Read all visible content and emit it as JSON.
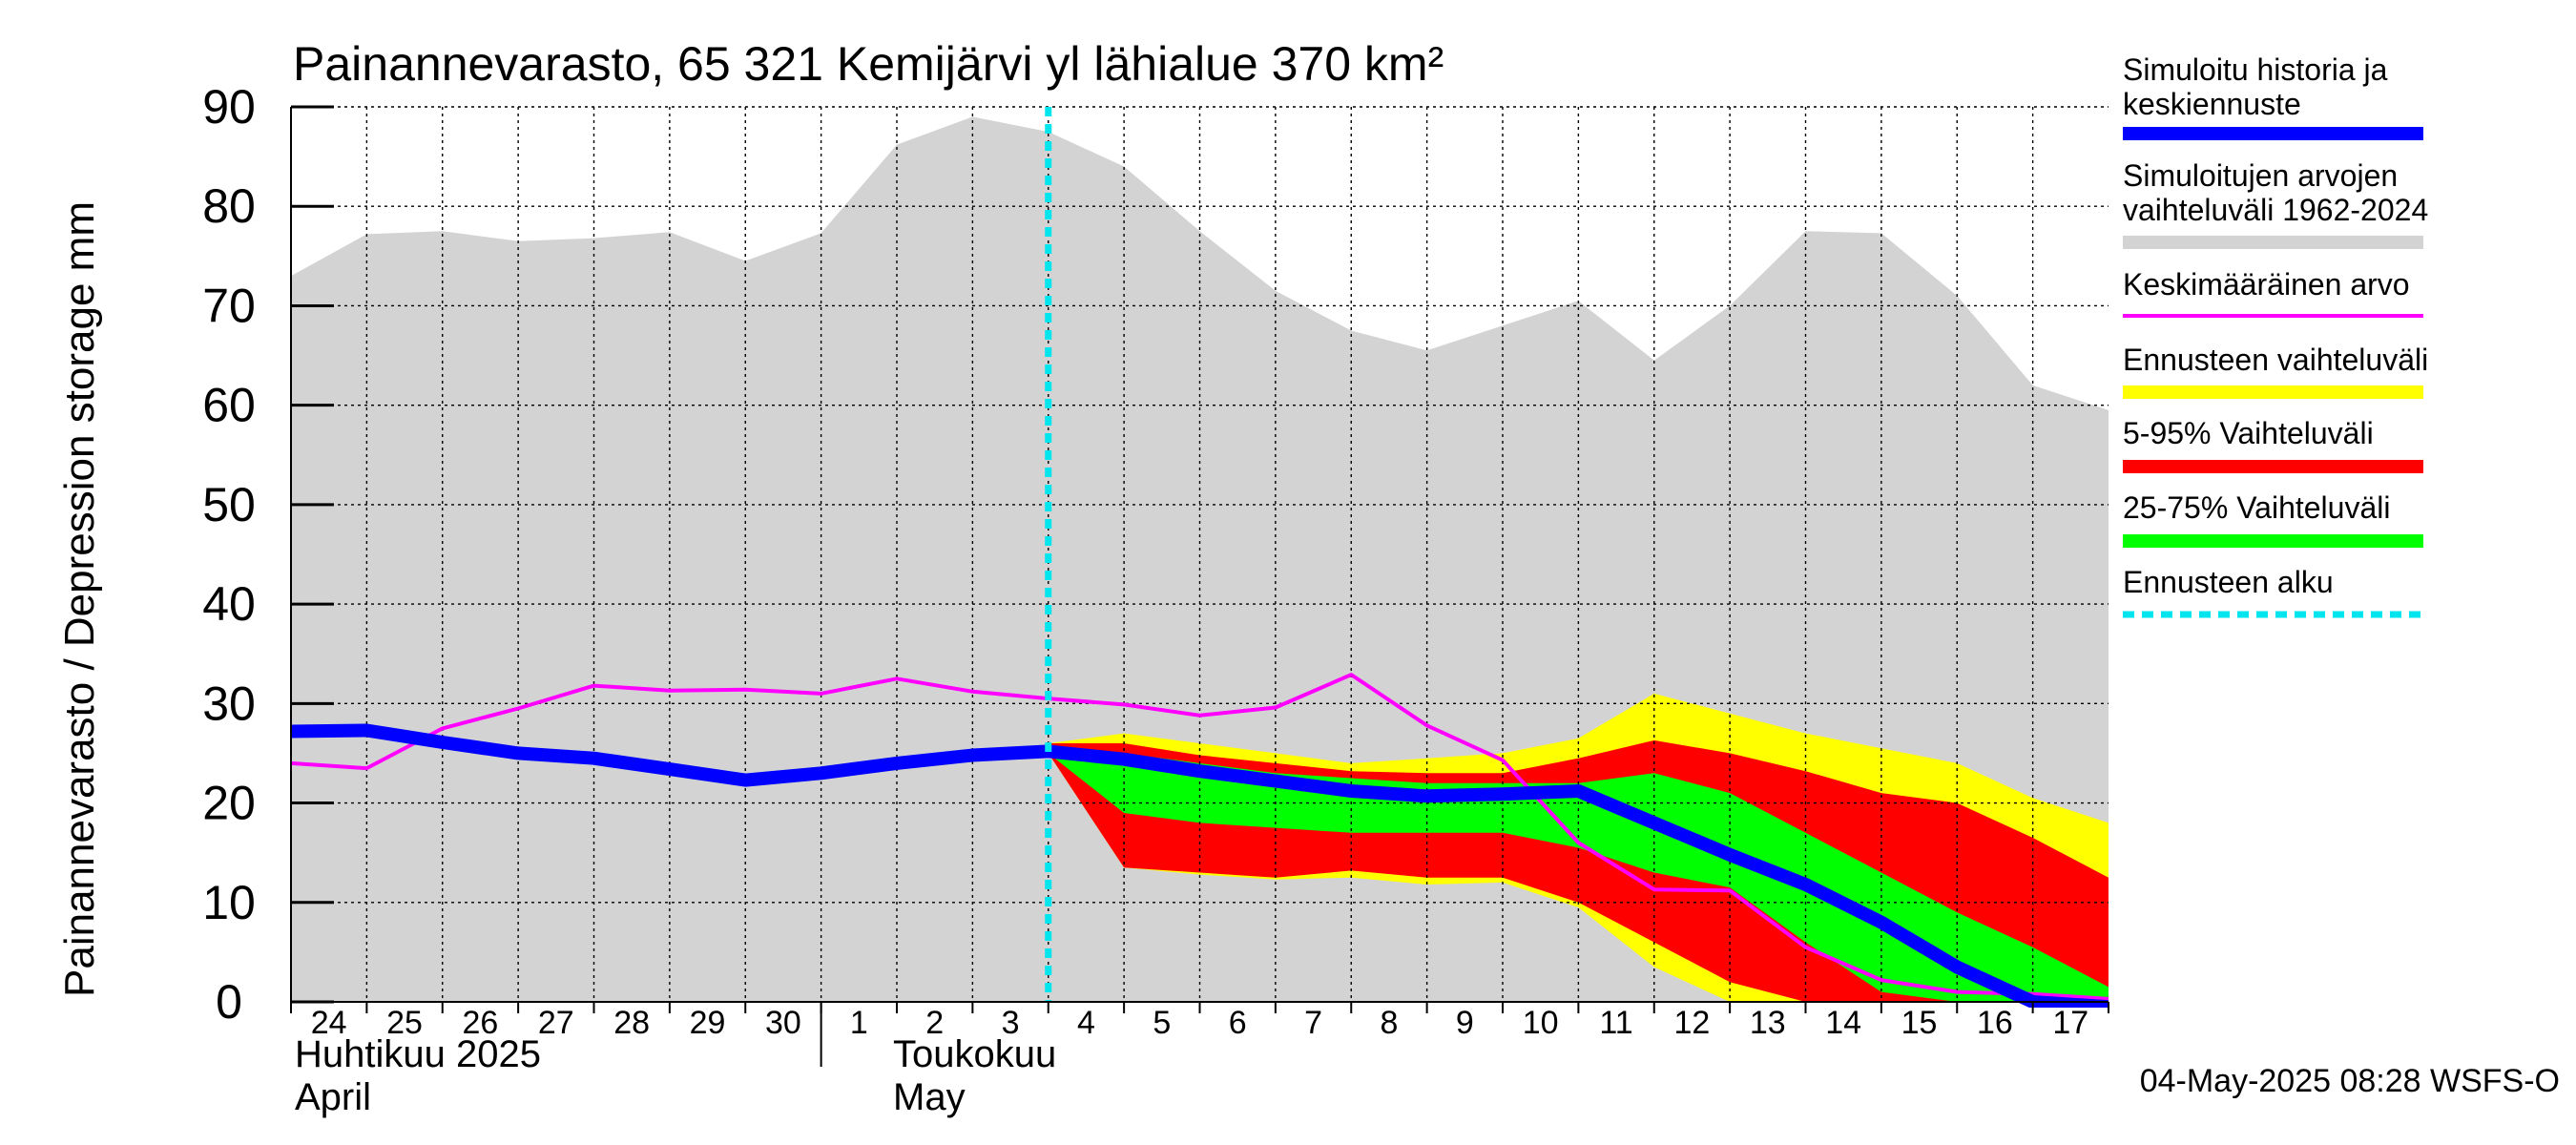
{
  "colors": {
    "range_hist": "#d3d3d3",
    "forecast_range": "#ffff00",
    "p5_95": "#ff0000",
    "p25_75": "#00ff00",
    "median": "#0000ff",
    "mean": "#ff00ff",
    "forecast_start": "#00e5ee"
  },
  "chart_data": {
    "type": "area",
    "title": "Painannevarasto, 65 321 Kemijärvi yl lähialue 370 km²",
    "ylabel": "Painannevarasto / Depression storage    mm",
    "ylim": [
      0,
      90
    ],
    "yticks": [
      0,
      10,
      20,
      30,
      40,
      50,
      60,
      70,
      80,
      90
    ],
    "x_start": "2025-04-24",
    "x_end": "2025-05-18",
    "day_labels": [
      "24",
      "25",
      "26",
      "27",
      "28",
      "29",
      "30",
      "1",
      "2",
      "3",
      "4",
      "5",
      "6",
      "7",
      "8",
      "9",
      "10",
      "11",
      "12",
      "13",
      "14",
      "15",
      "16",
      "17"
    ],
    "month_labels": [
      {
        "fi": "Huhtikuu  2025",
        "en": "April",
        "at_day": "2025-04-24"
      },
      {
        "fi": "Toukokuu",
        "en": "May",
        "at_day": "2025-05-02"
      }
    ],
    "forecast_start": "2025-05-04",
    "timestamp": "04-May-2025 08:28 WSFS-O",
    "grid": true,
    "legend_position": "right",
    "legend": [
      {
        "key": "median",
        "label": "Simuloitu historia ja keskiennuste"
      },
      {
        "key": "range_hist",
        "label": "Simuloitujen arvojen vaihteluväli 1962-2024"
      },
      {
        "key": "mean",
        "label": "Keskimääräinen arvo"
      },
      {
        "key": "forecast_range",
        "label": "Ennusteen vaihteluväli"
      },
      {
        "key": "p5_95",
        "label": "5-95% Vaihteluväli"
      },
      {
        "key": "p25_75",
        "label": "25-75% Vaihteluväli"
      },
      {
        "key": "forecast_start",
        "label": "Ennusteen alku"
      }
    ],
    "hist_range": {
      "x": [
        "2025-04-24",
        "2025-04-25",
        "2025-04-26",
        "2025-04-27",
        "2025-04-28",
        "2025-04-29",
        "2025-04-30",
        "2025-05-01",
        "2025-05-02",
        "2025-05-03",
        "2025-05-04",
        "2025-05-05",
        "2025-05-06",
        "2025-05-07",
        "2025-05-08",
        "2025-05-09",
        "2025-05-10",
        "2025-05-11",
        "2025-05-12",
        "2025-05-13",
        "2025-05-14",
        "2025-05-15",
        "2025-05-16",
        "2025-05-17",
        "2025-05-18"
      ],
      "upper": [
        73,
        77.2,
        77.5,
        76.5,
        76.8,
        77.4,
        74.5,
        77.3,
        86.2,
        89,
        87.5,
        84,
        77.5,
        71.5,
        67.5,
        65.5,
        68,
        70.5,
        64.5,
        70,
        77.5,
        77.3,
        71,
        62,
        59.5
      ],
      "lower": [
        0,
        0,
        0,
        0,
        0,
        0,
        0,
        0,
        0,
        0,
        0,
        0,
        0,
        0,
        0,
        0,
        0,
        0,
        0,
        0,
        0,
        0,
        0,
        0,
        0
      ]
    },
    "forecast_x": [
      "2025-05-04",
      "2025-05-05",
      "2025-05-06",
      "2025-05-07",
      "2025-05-08",
      "2025-05-09",
      "2025-05-10",
      "2025-05-11",
      "2025-05-12",
      "2025-05-13",
      "2025-05-14",
      "2025-05-15",
      "2025-05-16",
      "2025-05-17",
      "2025-05-18"
    ],
    "forecast_range": {
      "upper": [
        26,
        27,
        26,
        25,
        24,
        24.5,
        25,
        26.5,
        31,
        29,
        27,
        25.5,
        24,
        20.5,
        18
      ],
      "lower": [
        25,
        13.5,
        12.8,
        12.3,
        12.5,
        11.8,
        12,
        9.5,
        3.5,
        0,
        0,
        0,
        0,
        0,
        0
      ]
    },
    "p5_95": {
      "upper": [
        26,
        26,
        24.8,
        24,
        23.2,
        23,
        23,
        24.5,
        26.3,
        25,
        23.2,
        21,
        20,
        16.5,
        12.5
      ],
      "lower": [
        25,
        13.5,
        13,
        12.5,
        13.2,
        12.5,
        12.5,
        10,
        6,
        2,
        0,
        0,
        0,
        0,
        0
      ]
    },
    "p25_75": {
      "upper": [
        25.5,
        25,
        24,
        23,
        22.5,
        22,
        22,
        22,
        23,
        21,
        17,
        13,
        9,
        5.5,
        1.5
      ],
      "lower": [
        25,
        19,
        18,
        17.5,
        17,
        17,
        17,
        15.5,
        13,
        11.5,
        6,
        1,
        0,
        0,
        0
      ]
    },
    "median": {
      "x": [
        "2025-04-24",
        "2025-04-25",
        "2025-04-26",
        "2025-04-27",
        "2025-04-28",
        "2025-04-29",
        "2025-04-30",
        "2025-05-01",
        "2025-05-02",
        "2025-05-03",
        "2025-05-04",
        "2025-05-05",
        "2025-05-06",
        "2025-05-07",
        "2025-05-08",
        "2025-05-09",
        "2025-05-10",
        "2025-05-11",
        "2025-05-12",
        "2025-05-13",
        "2025-05-14",
        "2025-05-15",
        "2025-05-16",
        "2025-05-17",
        "2025-05-18"
      ],
      "values": [
        27.2,
        27.3,
        26.1,
        25,
        24.5,
        23.4,
        22.3,
        23,
        24,
        24.8,
        25.2,
        24.4,
        23.2,
        22.2,
        21.2,
        20.7,
        20.9,
        21.2,
        18,
        14.8,
        11.8,
        8,
        3.5,
        0,
        -0.5
      ]
    },
    "mean": {
      "x": [
        "2025-04-24",
        "2025-04-25",
        "2025-04-26",
        "2025-04-27",
        "2025-04-28",
        "2025-04-29",
        "2025-04-30",
        "2025-05-01",
        "2025-05-02",
        "2025-05-03",
        "2025-05-04",
        "2025-05-05",
        "2025-05-06",
        "2025-05-07",
        "2025-05-08",
        "2025-05-09",
        "2025-05-10",
        "2025-05-11",
        "2025-05-12",
        "2025-05-13",
        "2025-05-14",
        "2025-05-15",
        "2025-05-16",
        "2025-05-17",
        "2025-05-18"
      ],
      "values": [
        24,
        23.5,
        27.5,
        29.5,
        31.8,
        31.3,
        31.4,
        31,
        32.5,
        31.2,
        30.5,
        29.9,
        28.8,
        29.6,
        32.9,
        27.8,
        24.3,
        16,
        11.3,
        11.2,
        5.5,
        2.2,
        1,
        0.8,
        0.3
      ]
    }
  }
}
